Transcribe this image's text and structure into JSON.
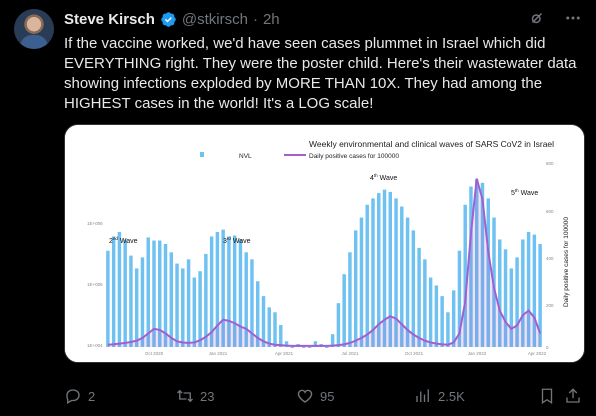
{
  "author": {
    "name": "Steve Kirsch",
    "handle": "@stkirsch",
    "time": "2h",
    "separator": "·"
  },
  "tweet": {
    "text": "If the vaccine worked, we'd have seen cases plummet in Israel which did EVERYTHING right. They were the poster child. Here's their wastewater data showing infections exploded by MORE THAN 10X. They had among the HIGHEST cases in the world! It's a LOG scale!"
  },
  "actions": {
    "replies": "2",
    "reposts": "23",
    "likes": "95",
    "views": "2.5K"
  },
  "icons": {
    "verified": "verified-badge-icon",
    "grok": "grok-icon",
    "more": "more-icon",
    "reply": "reply-icon",
    "repost": "repost-icon",
    "like": "heart-icon",
    "views": "views-icon",
    "bookmark": "bookmark-icon",
    "share": "share-icon"
  },
  "colors": {
    "accent": "#1d9bf0",
    "bar": "#6ec1f0",
    "line": "#a35fd1",
    "muted": "#71767b"
  },
  "chart_data": {
    "type": "bar",
    "title": "Weekly environmental and clinical waves of SARS CoV2 in Israel",
    "legend": [
      {
        "name": "NVL",
        "marker": "bar"
      },
      {
        "name": "Daily positive cases for 100000",
        "marker": "line"
      }
    ],
    "legend_position": "top",
    "ylabel_right": "Daily positive cases for 100000",
    "y_left_scale": "log",
    "y_left_ticks": [
      "1E+004",
      "1E+005",
      "1E+006"
    ],
    "y_right_ticks": [
      "0",
      "200",
      "400",
      "600",
      "800"
    ],
    "y_right_range": [
      0,
      800
    ],
    "x_ticks": [
      "Oct 2020",
      "Jan 2021",
      "Apr 2021",
      "Jul 2021",
      "Oct 2021",
      "Jan 2022",
      "Apr 2022"
    ],
    "annotations": [
      {
        "label": "2nd Wave",
        "sup": "nd"
      },
      {
        "label": "3rd Wave",
        "sup": "rd"
      },
      {
        "label": "4th Wave",
        "sup": "th"
      },
      {
        "label": "5th Wave",
        "sup": "th"
      }
    ],
    "series": [
      {
        "name": "NVL",
        "values": [
          210000,
          330000,
          380000,
          300000,
          180000,
          120000,
          170000,
          320000,
          290000,
          290000,
          260000,
          200000,
          140000,
          120000,
          160000,
          90000,
          110000,
          190000,
          330000,
          380000,
          410000,
          330000,
          340000,
          300000,
          200000,
          160000,
          80000,
          50000,
          35000,
          30000,
          20000,
          12000,
          10000,
          11000,
          10000,
          10000,
          12000,
          11000,
          10000,
          15000,
          40000,
          100000,
          200000,
          400000,
          600000,
          900000,
          1100000,
          1300000,
          1450000,
          1350000,
          1100000,
          850000,
          600000,
          400000,
          230000,
          160000,
          90000,
          70000,
          50000,
          30000,
          60000,
          210000,
          900000,
          1600000,
          2000000,
          1800000,
          1100000,
          600000,
          300000,
          220000,
          120000,
          170000,
          300000,
          380000,
          350000,
          260000
        ]
      },
      {
        "name": "Daily positive cases for 100000",
        "values": [
          10,
          12,
          15,
          18,
          22,
          28,
          40,
          60,
          80,
          75,
          60,
          40,
          25,
          20,
          18,
          20,
          30,
          45,
          65,
          95,
          120,
          115,
          105,
          90,
          80,
          60,
          40,
          25,
          15,
          10,
          8,
          6,
          5,
          5,
          5,
          5,
          5,
          5,
          5,
          6,
          8,
          12,
          18,
          28,
          40,
          55,
          75,
          100,
          120,
          135,
          125,
          100,
          75,
          55,
          40,
          28,
          20,
          15,
          12,
          10,
          20,
          60,
          200,
          500,
          740,
          650,
          420,
          260,
          160,
          110,
          80,
          95,
          140,
          160,
          130,
          60
        ]
      }
    ]
  }
}
